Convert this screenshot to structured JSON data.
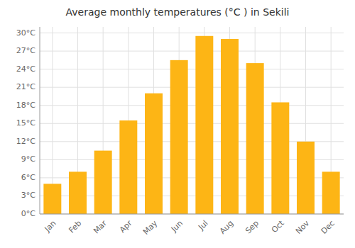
{
  "chart_data": {
    "type": "bar",
    "title": "Average monthly temperatures (°C ) in Sekili",
    "categories": [
      "Jan",
      "Feb",
      "Mar",
      "Apr",
      "May",
      "Jun",
      "Jul",
      "Aug",
      "Sep",
      "Oct",
      "Nov",
      "Dec"
    ],
    "values": [
      5.0,
      7.0,
      10.5,
      15.5,
      20.0,
      25.5,
      29.5,
      29.0,
      25.0,
      18.5,
      12.0,
      7.0
    ],
    "color": "#FDB515",
    "ylim": [
      0,
      31
    ],
    "yticks": [
      {
        "value": 0,
        "label": "0°C"
      },
      {
        "value": 3,
        "label": "3°C"
      },
      {
        "value": 6,
        "label": "6°C"
      },
      {
        "value": 9,
        "label": "9°C"
      },
      {
        "value": 12,
        "label": "12°C"
      },
      {
        "value": 15,
        "label": "15°C"
      },
      {
        "value": 18,
        "label": "18°C"
      },
      {
        "value": 21,
        "label": "21°C"
      },
      {
        "value": 24,
        "label": "24°C"
      },
      {
        "value": 27,
        "label": "27°C"
      },
      {
        "value": 30,
        "label": "30°C"
      }
    ],
    "grid": true
  }
}
